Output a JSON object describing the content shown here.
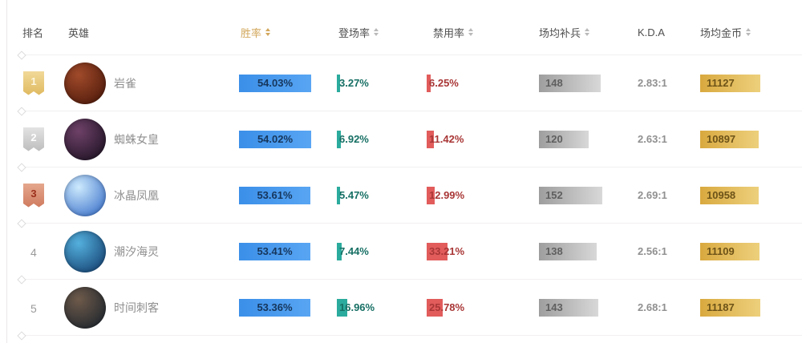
{
  "colors": {
    "accent_gold": "#D2A75C",
    "winrate_bar_blue": "#3E96F0",
    "winrate_text": "#16365C",
    "pick_bar_teal": "#2BAB9D",
    "ban_bar_red": "#E25C5C",
    "cs_bar_gray": "#9E9E9E",
    "gold_bar": "#D9A93F",
    "badge_gold": "#DFB95F",
    "badge_silver": "#BDBDBD",
    "badge_bronze": "#CF7A5E"
  },
  "header": {
    "columns": [
      {
        "label": "排名",
        "sortable": false,
        "active": false
      },
      {
        "label": "英雄",
        "sortable": false,
        "active": false
      },
      {
        "label": "胜率",
        "sortable": true,
        "active": true
      },
      {
        "label": "登场率",
        "sortable": true,
        "active": false
      },
      {
        "label": "禁用率",
        "sortable": true,
        "active": false
      },
      {
        "label": "场均补兵",
        "sortable": true,
        "active": false
      },
      {
        "label": "K.D.A",
        "sortable": false,
        "active": false
      },
      {
        "label": "场均金币",
        "sortable": true,
        "active": false
      }
    ]
  },
  "rows": [
    {
      "rank": "1",
      "badge": "gold",
      "hero": "岩雀",
      "avatar": "taliyah-portrait",
      "avatar_colors": [
        "#a04a2a",
        "#451407"
      ],
      "win_rate": "54.03%",
      "win_rate_pct": 54.03,
      "pick_rate": "3.27%",
      "pick_rate_pct": 3.27,
      "ban_rate": "6.25%",
      "ban_rate_pct": 6.25,
      "cs": "148",
      "cs_value": 148,
      "kda": "2.83:1",
      "gold": "11127",
      "gold_value": 11127
    },
    {
      "rank": "2",
      "badge": "silver",
      "hero": "蜘蛛女皇",
      "avatar": "elise-portrait",
      "avatar_colors": [
        "#6e4168",
        "#150d1c"
      ],
      "win_rate": "54.02%",
      "win_rate_pct": 54.02,
      "pick_rate": "6.92%",
      "pick_rate_pct": 6.92,
      "ban_rate": "11.42%",
      "ban_rate_pct": 11.42,
      "cs": "120",
      "cs_value": 120,
      "kda": "2.63:1",
      "gold": "10897",
      "gold_value": 10897
    },
    {
      "rank": "3",
      "badge": "bronze",
      "hero": "冰晶凤凰",
      "avatar": "anivia-portrait",
      "avatar_colors": [
        "#cdeafd",
        "#2a63c4"
      ],
      "win_rate": "53.61%",
      "win_rate_pct": 53.61,
      "pick_rate": "5.47%",
      "pick_rate_pct": 5.47,
      "ban_rate": "12.99%",
      "ban_rate_pct": 12.99,
      "cs": "152",
      "cs_value": 152,
      "kda": "2.69:1",
      "gold": "10958",
      "gold_value": 10958
    },
    {
      "rank": "4",
      "badge": null,
      "hero": "潮汐海灵",
      "avatar": "fizz-portrait",
      "avatar_colors": [
        "#54b0dd",
        "#0e3566"
      ],
      "win_rate": "53.41%",
      "win_rate_pct": 53.41,
      "pick_rate": "7.44%",
      "pick_rate_pct": 7.44,
      "ban_rate": "33.21%",
      "ban_rate_pct": 33.21,
      "cs": "138",
      "cs_value": 138,
      "kda": "2.56:1",
      "gold": "11109",
      "gold_value": 11109
    },
    {
      "rank": "5",
      "badge": null,
      "hero": "时间刺客",
      "avatar": "ekko-portrait",
      "avatar_colors": [
        "#6e5a4a",
        "#141f2a"
      ],
      "win_rate": "53.36%",
      "win_rate_pct": 53.36,
      "pick_rate": "16.96%",
      "pick_rate_pct": 16.96,
      "ban_rate": "25.78%",
      "ban_rate_pct": 25.78,
      "cs": "143",
      "cs_value": 143,
      "kda": "2.68:1",
      "gold": "11187",
      "gold_value": 11187
    }
  ]
}
